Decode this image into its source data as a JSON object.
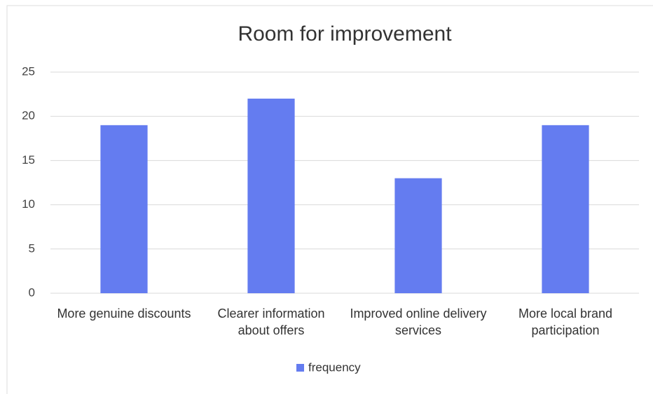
{
  "chart_data": {
    "type": "bar",
    "title": "Room for improvement",
    "categories": [
      "More genuine discounts",
      "Clearer information about offers",
      "Improved online delivery services",
      "More local brand participation"
    ],
    "series": [
      {
        "name": "frequency",
        "color": "#647cf0",
        "values": [
          19,
          22,
          13,
          19
        ]
      }
    ],
    "ylim": [
      0,
      25
    ],
    "yticks": [
      0,
      5,
      10,
      15,
      20,
      25
    ],
    "grid": true,
    "legend": "bottom"
  }
}
